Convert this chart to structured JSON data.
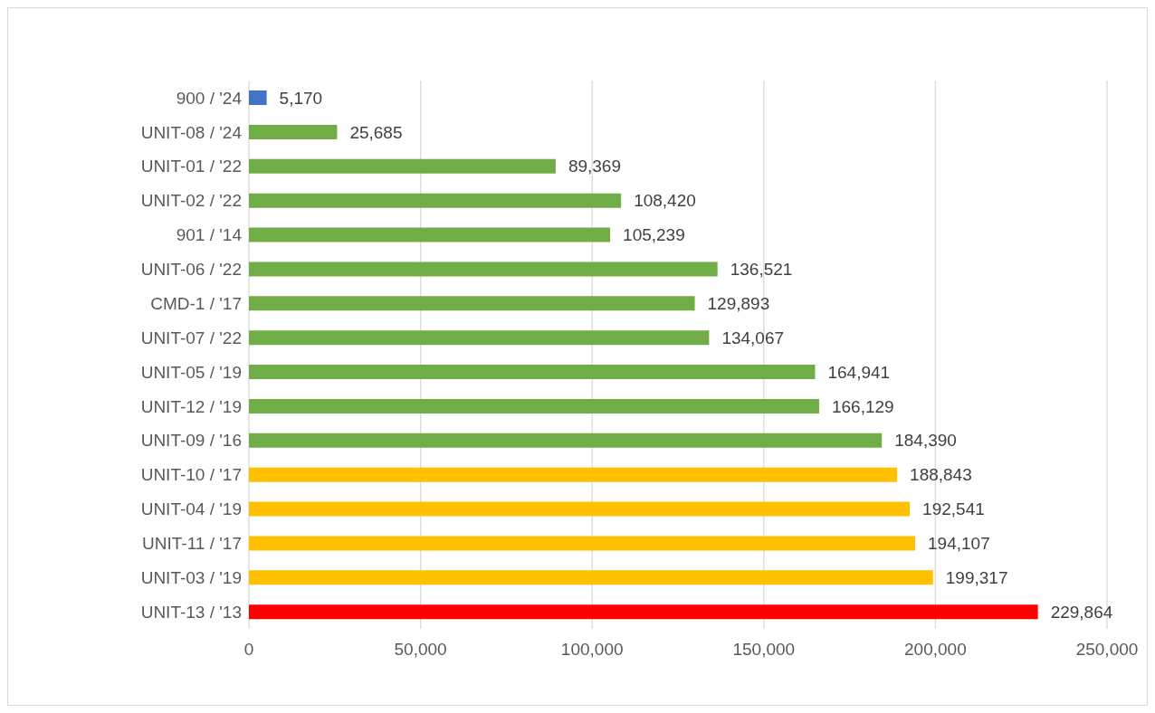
{
  "chart_data": {
    "type": "bar",
    "orientation": "horizontal",
    "categories": [
      "900 / '24",
      "UNIT-08 / '24",
      "UNIT-01 / '22",
      "UNIT-02 / '22",
      "901 / '14",
      "UNIT-06 / '22",
      "CMD-1 / '17",
      "UNIT-07 / '22",
      "UNIT-05 / '19",
      "UNIT-12 / '19",
      "UNIT-09 / '16",
      "UNIT-10 / '17",
      "UNIT-04 / '19",
      "UNIT-11 / '17",
      "UNIT-03 / '19",
      "UNIT-13 / '13"
    ],
    "values": [
      5170,
      25685,
      89369,
      108420,
      105239,
      136521,
      129893,
      134067,
      164941,
      166129,
      184390,
      188843,
      192541,
      194107,
      199317,
      229864
    ],
    "value_labels": [
      "5,170",
      "25,685",
      "89,369",
      "108,420",
      "105,239",
      "136,521",
      "129,893",
      "134,067",
      "164,941",
      "166,129",
      "184,390",
      "188,843",
      "192,541",
      "194,107",
      "199,317",
      "229,864"
    ],
    "colors": [
      "#4472c4",
      "#70ad47",
      "#70ad47",
      "#70ad47",
      "#70ad47",
      "#70ad47",
      "#70ad47",
      "#70ad47",
      "#70ad47",
      "#70ad47",
      "#70ad47",
      "#ffc000",
      "#ffc000",
      "#ffc000",
      "#ffc000",
      "#ff0000"
    ],
    "xlim": [
      0,
      250000
    ],
    "xticks": [
      0,
      {
        "value": 50000,
        "label": "50,000"
      },
      {
        "value": 100000,
        "label": "100,000"
      },
      {
        "value": 150000,
        "label": "150,000"
      },
      {
        "value": 200000,
        "label": "200,000"
      },
      {
        "value": 250000,
        "label": "250,000"
      }
    ],
    "grid": "x"
  }
}
